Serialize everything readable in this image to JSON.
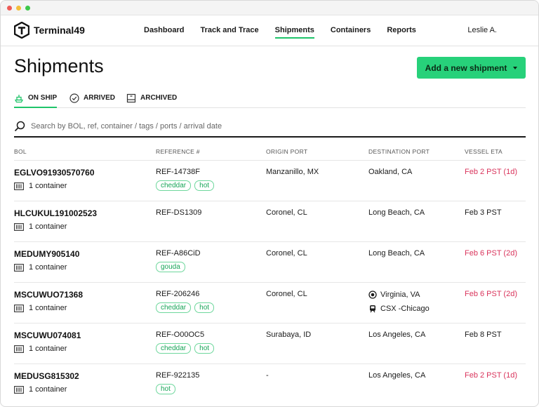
{
  "window": {
    "dots": [
      "#ee5b57",
      "#f4be3b",
      "#3dc84a"
    ]
  },
  "brand": {
    "name": "Terminal49",
    "logo_icon": "terminal49-logo-icon"
  },
  "nav": {
    "items": [
      {
        "label": "Dashboard",
        "active": false
      },
      {
        "label": "Track and Trace",
        "active": false
      },
      {
        "label": "Shipments",
        "active": true
      },
      {
        "label": "Containers",
        "active": false
      },
      {
        "label": "Reports",
        "active": false
      }
    ],
    "user": "Leslie A."
  },
  "page": {
    "title": "Shipments",
    "add_button_label": "Add a new shipment"
  },
  "tabs": [
    {
      "label": "ON SHIP",
      "icon": "ship-icon",
      "active": true
    },
    {
      "label": "ARRIVED",
      "icon": "check-circle-icon",
      "active": false
    },
    {
      "label": "ARCHIVED",
      "icon": "archive-box-icon",
      "active": false
    }
  ],
  "search": {
    "placeholder": "Search by BOL, ref, container / tags / ports / arrival date",
    "value": ""
  },
  "table": {
    "columns": [
      "BOL",
      "REFERENCE #",
      "ORIGIN PORT",
      "DESTINATION PORT",
      "VESSEL ETA"
    ],
    "rows": [
      {
        "bol": "EGLVO91930570760",
        "containers": "1 container",
        "ref": "REF-14738F",
        "tags": [
          "cheddar",
          "hot"
        ],
        "origin": "Manzanillo, MX",
        "destination": "Oakland, CA",
        "destination_rail": "",
        "eta": "Feb 2 PST (1d)",
        "eta_late": true
      },
      {
        "bol": "HLCUKUL191002523",
        "containers": "1 container",
        "ref": "REF-DS1309",
        "tags": [],
        "origin": "Coronel, CL",
        "destination": "Long Beach, CA",
        "destination_rail": "",
        "eta": "Feb 3 PST",
        "eta_late": false
      },
      {
        "bol": "MEDUMY905140",
        "containers": "1 container",
        "ref": "REF-A86CiD",
        "tags": [
          "gouda"
        ],
        "origin": "Coronel, CL",
        "destination": "Long Beach, CA",
        "destination_rail": "",
        "eta": "Feb 6 PST (2d)",
        "eta_late": true
      },
      {
        "bol": "MSCUWUO71368",
        "containers": "1 container",
        "ref": "REF-206246",
        "tags": [
          "cheddar",
          "hot"
        ],
        "origin": "Coronel, CL",
        "destination": "Virginia, VA",
        "destination_rail": "CSX -Chicago",
        "eta": "Feb 6 PST (2d)",
        "eta_late": true
      },
      {
        "bol": "MSCUWU074081",
        "containers": "1 container",
        "ref": "REF-O00OC5",
        "tags": [
          "cheddar",
          "hot"
        ],
        "origin": "Surabaya, ID",
        "destination": "Los Angeles, CA",
        "destination_rail": "",
        "eta": "Feb 8 PST",
        "eta_late": false
      },
      {
        "bol": "MEDUSG815302",
        "containers": "1 container",
        "ref": "REF-922135",
        "tags": [
          "hot"
        ],
        "origin": "-",
        "destination": "Los Angeles, CA",
        "destination_rail": "",
        "eta": "Feb 2 PST (1d)",
        "eta_late": true
      }
    ]
  },
  "colors": {
    "accent_green": "#27d17a",
    "late_red": "#d9335b",
    "tag_green": "#17a557"
  }
}
